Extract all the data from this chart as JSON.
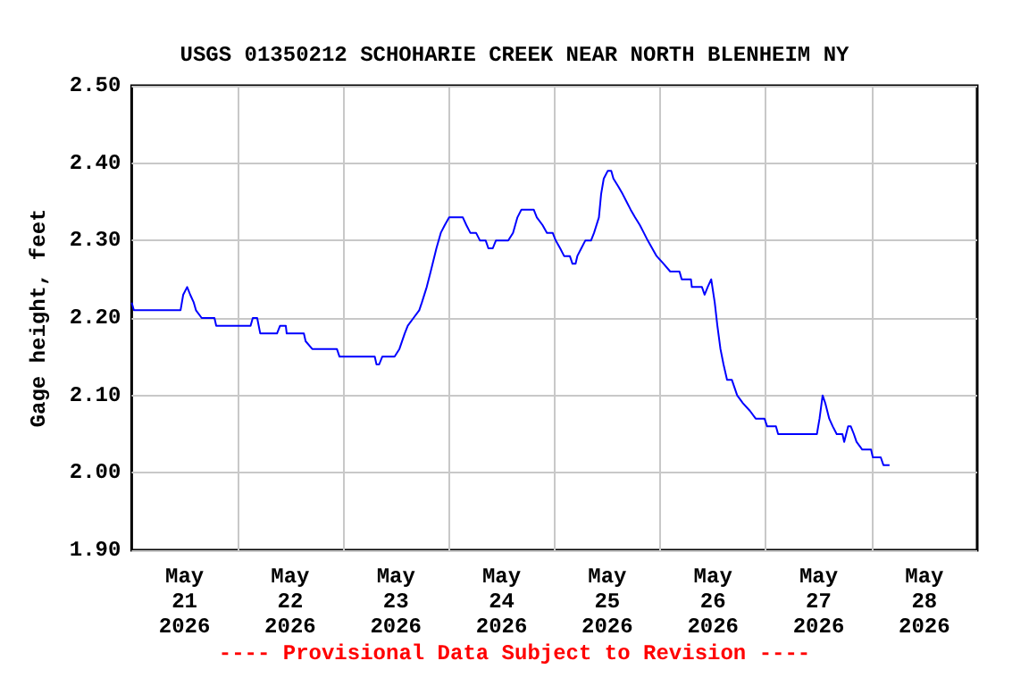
{
  "chart_data": {
    "type": "line",
    "title": "USGS 01350212 SCHOHARIE CREEK NEAR NORTH BLENHEIM NY",
    "ylabel": "Gage height, feet",
    "annotations": [
      "---- Provisional Data Subject to Revision ----"
    ],
    "x": [
      "2026-05-21T00:00",
      "2026-05-21T00:30",
      "2026-05-21T11:06",
      "2026-05-21T11:42",
      "2026-05-21T12:36",
      "2026-05-21T13:18",
      "2026-05-21T14:06",
      "2026-05-21T14:36",
      "2026-05-21T15:54",
      "2026-05-21T18:48",
      "2026-05-21T19:12",
      "2026-05-22T03:00",
      "2026-05-22T03:30",
      "2026-05-22T04:30",
      "2026-05-22T05:12",
      "2026-05-22T09:00",
      "2026-05-22T09:42",
      "2026-05-22T11:00",
      "2026-05-22T11:12",
      "2026-05-22T15:06",
      "2026-05-22T15:30",
      "2026-05-22T17:00",
      "2026-05-22T22:36",
      "2026-05-22T23:12",
      "2026-05-23T07:12",
      "2026-05-23T07:36",
      "2026-05-23T08:12",
      "2026-05-23T08:54",
      "2026-05-23T11:42",
      "2026-05-23T12:48",
      "2026-05-23T14:00",
      "2026-05-23T14:42",
      "2026-05-23T16:00",
      "2026-05-23T17:18",
      "2026-05-23T17:54",
      "2026-05-23T19:00",
      "2026-05-23T19:54",
      "2026-05-23T21:12",
      "2026-05-23T22:12",
      "2026-05-23T23:06",
      "2026-05-24T00:06",
      "2026-05-24T03:12",
      "2026-05-24T04:00",
      "2026-05-24T04:54",
      "2026-05-24T06:12",
      "2026-05-24T07:06",
      "2026-05-24T08:24",
      "2026-05-24T09:00",
      "2026-05-24T10:00",
      "2026-05-24T10:42",
      "2026-05-24T13:30",
      "2026-05-24T14:36",
      "2026-05-24T15:36",
      "2026-05-24T16:30",
      "2026-05-24T19:18",
      "2026-05-24T20:00",
      "2026-05-24T21:18",
      "2026-05-24T22:18",
      "2026-05-24T23:36",
      "2026-05-25T00:18",
      "2026-05-25T01:18",
      "2026-05-25T02:12",
      "2026-05-25T03:30",
      "2026-05-25T04:06",
      "2026-05-25T04:48",
      "2026-05-25T05:12",
      "2026-05-25T06:06",
      "2026-05-25T07:00",
      "2026-05-25T08:18",
      "2026-05-25T09:00",
      "2026-05-25T10:06",
      "2026-05-25T10:36",
      "2026-05-25T11:12",
      "2026-05-25T12:06",
      "2026-05-25T12:54",
      "2026-05-25T13:24",
      "2026-05-25T14:30",
      "2026-05-25T15:30",
      "2026-05-25T16:24",
      "2026-05-25T17:18",
      "2026-05-25T18:18",
      "2026-05-25T19:24",
      "2026-05-25T20:18",
      "2026-05-25T21:12",
      "2026-05-25T22:12",
      "2026-05-25T23:12",
      "2026-05-26T00:48",
      "2026-05-26T02:18",
      "2026-05-26T04:24",
      "2026-05-26T04:54",
      "2026-05-26T07:00",
      "2026-05-26T07:12",
      "2026-05-26T09:30",
      "2026-05-26T10:06",
      "2026-05-26T10:48",
      "2026-05-26T11:36",
      "2026-05-26T12:24",
      "2026-05-26T13:00",
      "2026-05-26T13:42",
      "2026-05-26T14:24",
      "2026-05-26T15:12",
      "2026-05-26T16:18",
      "2026-05-26T17:30",
      "2026-05-26T18:48",
      "2026-05-26T20:24",
      "2026-05-26T21:42",
      "2026-05-26T23:42",
      "2026-05-27T00:18",
      "2026-05-27T02:18",
      "2026-05-27T02:48",
      "2026-05-27T11:36",
      "2026-05-27T12:12",
      "2026-05-27T12:54",
      "2026-05-27T13:30",
      "2026-05-27T14:24",
      "2026-05-27T15:12",
      "2026-05-27T16:06",
      "2026-05-27T17:24",
      "2026-05-27T17:48",
      "2026-05-27T18:42",
      "2026-05-27T19:18",
      "2026-05-27T20:00",
      "2026-05-27T20:36",
      "2026-05-27T21:54",
      "2026-05-27T23:54",
      "2026-05-28T00:18",
      "2026-05-28T02:06",
      "2026-05-28T02:42",
      "2026-05-28T04:06"
    ],
    "series": [
      {
        "color": "#0000ff",
        "values": [
          2.22,
          2.21,
          2.21,
          2.23,
          2.24,
          2.23,
          2.22,
          2.21,
          2.2,
          2.2,
          2.19,
          2.19,
          2.2,
          2.2,
          2.18,
          2.18,
          2.19,
          2.19,
          2.18,
          2.18,
          2.17,
          2.16,
          2.16,
          2.15,
          2.15,
          2.14,
          2.14,
          2.15,
          2.15,
          2.16,
          2.18,
          2.19,
          2.2,
          2.21,
          2.22,
          2.24,
          2.26,
          2.29,
          2.31,
          2.32,
          2.33,
          2.33,
          2.32,
          2.31,
          2.31,
          2.3,
          2.3,
          2.29,
          2.29,
          2.3,
          2.3,
          2.31,
          2.33,
          2.34,
          2.34,
          2.33,
          2.32,
          2.31,
          2.31,
          2.3,
          2.29,
          2.28,
          2.28,
          2.27,
          2.27,
          2.28,
          2.29,
          2.3,
          2.3,
          2.31,
          2.33,
          2.36,
          2.38,
          2.39,
          2.39,
          2.38,
          2.37,
          2.36,
          2.35,
          2.34,
          2.33,
          2.32,
          2.31,
          2.3,
          2.29,
          2.28,
          2.27,
          2.26,
          2.26,
          2.25,
          2.25,
          2.24,
          2.24,
          2.23,
          2.24,
          2.25,
          2.22,
          2.19,
          2.16,
          2.14,
          2.12,
          2.12,
          2.1,
          2.09,
          2.08,
          2.07,
          2.07,
          2.06,
          2.06,
          2.05,
          2.05,
          2.07,
          2.1,
          2.09,
          2.07,
          2.06,
          2.05,
          2.05,
          2.04,
          2.06,
          2.06,
          2.05,
          2.04,
          2.03,
          2.03,
          2.02,
          2.02,
          2.01,
          2.01
        ]
      }
    ],
    "xlim": [
      "2026-05-21T00:00",
      "2026-05-29T00:00"
    ],
    "xticks": [
      {
        "value": "2026-05-21T12:00",
        "label": "May\n21\n2026"
      },
      {
        "value": "2026-05-22T00:00",
        "label": null
      },
      {
        "value": "2026-05-22T12:00",
        "label": "May\n22\n2026"
      },
      {
        "value": "2026-05-23T00:00",
        "label": null
      },
      {
        "value": "2026-05-23T12:00",
        "label": "May\n23\n2026"
      },
      {
        "value": "2026-05-24T00:00",
        "label": null
      },
      {
        "value": "2026-05-24T12:00",
        "label": "May\n24\n2026"
      },
      {
        "value": "2026-05-25T00:00",
        "label": null
      },
      {
        "value": "2026-05-25T12:00",
        "label": "May\n25\n2026"
      },
      {
        "value": "2026-05-26T00:00",
        "label": null
      },
      {
        "value": "2026-05-26T12:00",
        "label": "May\n26\n2026"
      },
      {
        "value": "2026-05-27T00:00",
        "label": null
      },
      {
        "value": "2026-05-27T12:00",
        "label": "May\n27\n2026"
      },
      {
        "value": "2026-05-28T00:00",
        "label": null
      },
      {
        "value": "2026-05-28T12:00",
        "label": "May\n28\n2026"
      }
    ],
    "ylim": [
      1.9,
      2.5
    ],
    "yticks": [
      {
        "value": 1.9,
        "label": "1.90"
      },
      {
        "value": 2.0,
        "label": "2.00"
      },
      {
        "value": 2.1,
        "label": "2.10"
      },
      {
        "value": 2.2,
        "label": "2.20"
      },
      {
        "value": 2.3,
        "label": "2.30"
      },
      {
        "value": 2.4,
        "label": "2.40"
      },
      {
        "value": 2.5,
        "label": "2.50"
      }
    ],
    "grid": true,
    "marker": "none"
  }
}
